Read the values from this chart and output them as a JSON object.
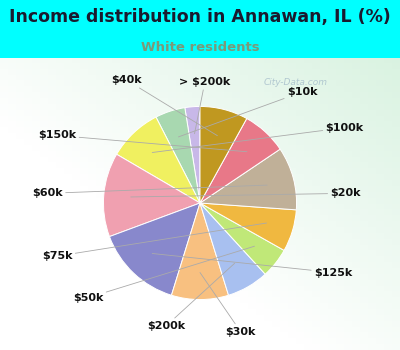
{
  "title": "Income distribution in Annawan, IL (%)",
  "subtitle": "White residents",
  "title_color": "#1a1a2e",
  "subtitle_color": "#7a9a7a",
  "background_color": "#00ffff",
  "chart_bg_top": "#d8f0e8",
  "chart_bg_center": "#f8fffc",
  "watermark": "City-Data.com",
  "labels": [
    "> $200k",
    "$10k",
    "$100k",
    "$20k",
    "$125k",
    "$30k",
    "$200k",
    "$50k",
    "$75k",
    "$60k",
    "$150k",
    "$40k"
  ],
  "values": [
    2.5,
    5.0,
    9.0,
    14.0,
    14.5,
    9.5,
    7.0,
    5.0,
    7.0,
    10.5,
    7.5,
    8.0
  ],
  "colors": [
    "#c8b8e8",
    "#a8d8b0",
    "#f0f060",
    "#f0a0b0",
    "#8888cc",
    "#f8c080",
    "#a8c0f0",
    "#c0e878",
    "#f0b840",
    "#c0b098",
    "#e87888",
    "#c09820"
  ],
  "startangle": 90,
  "label_fontsize": 8.0,
  "title_fontsize": 12.5,
  "subtitle_fontsize": 9.5
}
